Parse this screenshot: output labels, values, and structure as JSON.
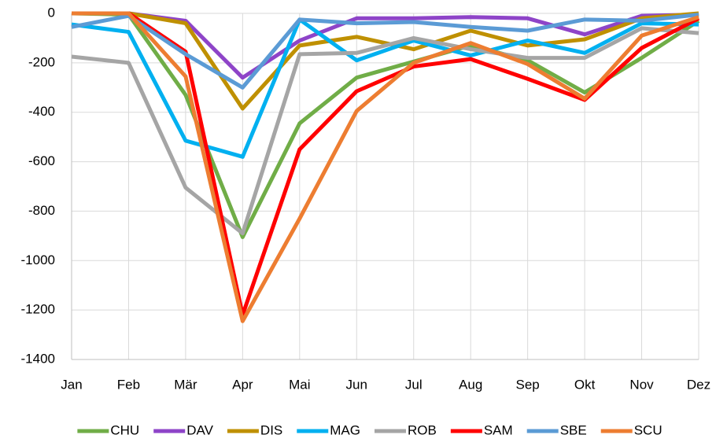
{
  "chart_data": {
    "type": "line",
    "categories": [
      "Jan",
      "Feb",
      "Mär",
      "Apr",
      "Mai",
      "Jun",
      "Jul",
      "Aug",
      "Sep",
      "Okt",
      "Nov",
      "Dez"
    ],
    "series": [
      {
        "name": "CHU",
        "color": "#70ad47",
        "values": [
          0,
          -5,
          -330,
          -905,
          -445,
          -260,
          -195,
          -130,
          -190,
          -320,
          -180,
          -30
        ]
      },
      {
        "name": "DAV",
        "color": "#8e44c8",
        "values": [
          0,
          0,
          -30,
          -260,
          -110,
          -20,
          -20,
          -15,
          -20,
          -85,
          -10,
          -5
        ]
      },
      {
        "name": "DIS",
        "color": "#bf9000",
        "values": [
          0,
          0,
          -40,
          -385,
          -130,
          -95,
          -145,
          -70,
          -130,
          -105,
          -20,
          0
        ]
      },
      {
        "name": "MAG",
        "color": "#00b0f0",
        "values": [
          -45,
          -75,
          -515,
          -580,
          -25,
          -190,
          -110,
          -170,
          -110,
          -160,
          -40,
          -45
        ]
      },
      {
        "name": "ROB",
        "color": "#a5a5a5",
        "values": [
          -175,
          -200,
          -705,
          -890,
          -165,
          -160,
          -100,
          -145,
          -180,
          -180,
          -60,
          -80
        ]
      },
      {
        "name": "SAM",
        "color": "#ff0000",
        "values": [
          0,
          0,
          -155,
          -1220,
          -550,
          -315,
          -215,
          -185,
          -265,
          -350,
          -140,
          -20
        ]
      },
      {
        "name": "SBE",
        "color": "#5b9bd5",
        "values": [
          -55,
          -10,
          -165,
          -300,
          -25,
          -40,
          -35,
          -55,
          -70,
          -25,
          -30,
          -5
        ]
      },
      {
        "name": "SCU",
        "color": "#ed7d31",
        "values": [
          0,
          0,
          -255,
          -1245,
          -830,
          -395,
          -200,
          -120,
          -205,
          -345,
          -90,
          -15
        ]
      }
    ],
    "ylim": [
      -1400,
      0
    ],
    "yticks": [
      0,
      -200,
      -400,
      -600,
      -800,
      -1000,
      -1200,
      -1400
    ],
    "grid": true,
    "legend": "bottom"
  }
}
